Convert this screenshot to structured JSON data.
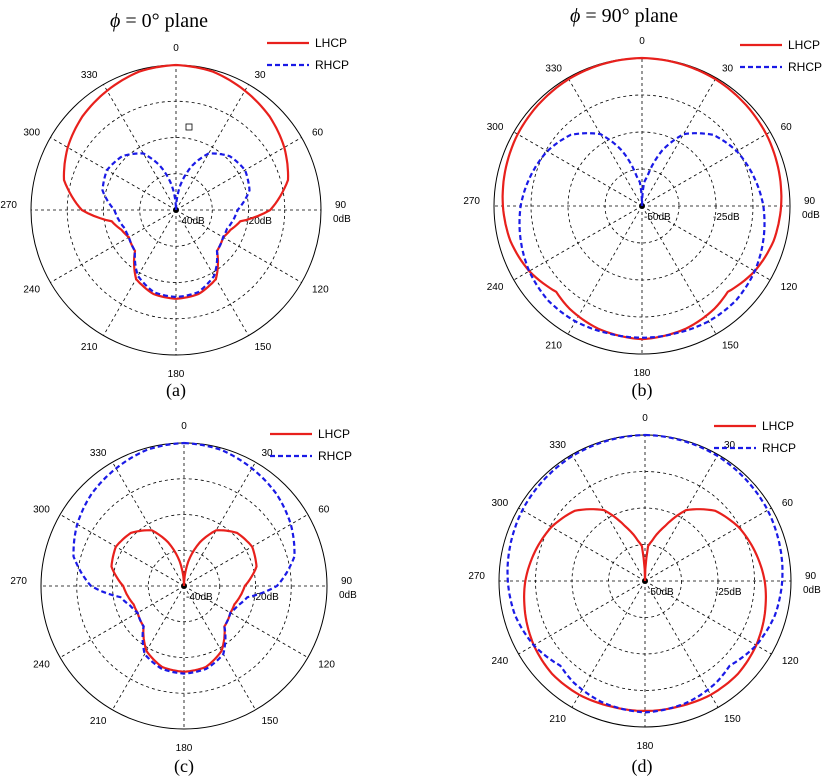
{
  "titles": {
    "a": {
      "symbol": "ϕ",
      "text": " = 0°  plane"
    },
    "b": {
      "symbol": "ϕ",
      "text": " = 90°  plane"
    }
  },
  "colors": {
    "lhcp": "#e8201c",
    "rhcp": "#1a1ae6",
    "grid": "#000000"
  },
  "chart_data": [
    {
      "id": "a",
      "type": "polar",
      "caption": "(a)",
      "angle_labels": [
        "0",
        "30",
        "60",
        "90",
        "120",
        "150",
        "180",
        "210",
        "240",
        "270",
        "300",
        "330"
      ],
      "radial_labels": [
        "-40dB",
        "-20dB",
        "0dB"
      ],
      "radial_range_db": [
        -40,
        0
      ],
      "grid": true,
      "legend_position": "top-right",
      "series": [
        {
          "name": "LHCP",
          "style": "solid",
          "theta_deg": [
            0,
            15,
            30,
            45,
            60,
            75,
            90,
            100,
            110,
            120,
            135,
            150,
            165,
            180,
            195,
            210,
            225,
            240,
            250,
            260,
            270,
            285,
            300,
            315,
            330,
            345,
            360
          ],
          "r_db": [
            0,
            -0.5,
            -2,
            -3.5,
            -5.5,
            -8,
            -14,
            -22,
            -24,
            -25,
            -24,
            -18,
            -16,
            -15.5,
            -16,
            -18,
            -24,
            -25,
            -24,
            -22,
            -14,
            -8,
            -5.5,
            -3.5,
            -2,
            -0.5,
            0
          ]
        },
        {
          "name": "RHCP",
          "style": "dashed",
          "theta_deg": [
            0,
            10,
            20,
            30,
            45,
            60,
            75,
            90,
            100,
            110,
            120,
            135,
            150,
            165,
            180,
            195,
            210,
            225,
            240,
            250,
            260,
            270,
            285,
            300,
            315,
            330,
            340,
            350,
            360
          ],
          "r_db": [
            -40,
            -33,
            -27,
            -22,
            -19,
            -18,
            -19,
            -23,
            -24,
            -25,
            -25,
            -24,
            -19,
            -16.5,
            -16,
            -16.5,
            -19,
            -24,
            -25,
            -25,
            -24,
            -23,
            -19,
            -18,
            -19,
            -22,
            -27,
            -33,
            -40
          ]
        }
      ]
    },
    {
      "id": "b",
      "type": "polar",
      "caption": "(b)",
      "angle_labels": [
        "0",
        "30",
        "60",
        "90",
        "120",
        "150",
        "180",
        "210",
        "240",
        "270",
        "300",
        "330"
      ],
      "radial_labels": [
        "-50dB",
        "-25dB",
        "0dB"
      ],
      "radial_range_db": [
        -50,
        0
      ],
      "grid": true,
      "legend_position": "top-right",
      "series": [
        {
          "name": "LHCP",
          "style": "solid",
          "theta_deg": [
            0,
            30,
            60,
            90,
            105,
            120,
            130,
            135,
            145,
            160,
            180,
            200,
            215,
            225,
            230,
            240,
            255,
            270,
            300,
            330,
            360
          ],
          "r_db": [
            0,
            -0.5,
            -1.5,
            -3,
            -4,
            -6,
            -8,
            -9,
            -7.5,
            -6,
            -5,
            -6,
            -7.5,
            -9,
            -8,
            -6,
            -4,
            -3,
            -1.5,
            -0.5,
            0
          ]
        },
        {
          "name": "RHCP",
          "style": "dashed",
          "theta_deg": [
            0,
            5,
            10,
            20,
            30,
            45,
            60,
            75,
            90,
            105,
            120,
            135,
            150,
            165,
            180,
            195,
            210,
            225,
            240,
            255,
            270,
            285,
            300,
            315,
            330,
            340,
            350,
            355,
            360
          ],
          "r_db": [
            -50,
            -42,
            -40,
            -30,
            -22,
            -16,
            -13,
            -11,
            -9,
            -7.5,
            -6,
            -5,
            -5,
            -5.5,
            -5.5,
            -5.5,
            -5,
            -5,
            -6,
            -7.5,
            -9,
            -11,
            -13,
            -16,
            -22,
            -30,
            -40,
            -42,
            -50
          ]
        }
      ]
    },
    {
      "id": "c",
      "type": "polar",
      "caption": "(c)",
      "angle_labels": [
        "0",
        "30",
        "60",
        "90",
        "120",
        "150",
        "180",
        "210",
        "240",
        "270",
        "300",
        "330"
      ],
      "radial_labels": [
        "-40dB",
        "-20dB",
        "0dB"
      ],
      "radial_range_db": [
        -40,
        0
      ],
      "grid": true,
      "legend_position": "top-right",
      "series": [
        {
          "name": "LHCP",
          "style": "solid",
          "theta_deg": [
            0,
            10,
            20,
            30,
            45,
            60,
            75,
            90,
            100,
            110,
            120,
            135,
            150,
            165,
            180,
            195,
            210,
            225,
            240,
            250,
            260,
            270,
            285,
            300,
            315,
            330,
            340,
            350,
            360
          ],
          "r_db": [
            -40,
            -33,
            -27,
            -22,
            -19,
            -18,
            -19,
            -23,
            -24,
            -25,
            -25,
            -24,
            -19,
            -16.5,
            -16,
            -16.5,
            -19,
            -24,
            -25,
            -25,
            -24,
            -23,
            -19,
            -18,
            -19,
            -22,
            -27,
            -33,
            -40
          ]
        },
        {
          "name": "RHCP",
          "style": "dashed",
          "theta_deg": [
            0,
            15,
            30,
            45,
            60,
            75,
            90,
            100,
            110,
            120,
            135,
            150,
            165,
            180,
            195,
            210,
            225,
            240,
            250,
            260,
            270,
            285,
            300,
            315,
            330,
            345,
            360
          ],
          "r_db": [
            0,
            -0.5,
            -2,
            -3.5,
            -5.5,
            -8,
            -14,
            -22,
            -24,
            -25,
            -24,
            -18,
            -16,
            -15.5,
            -16,
            -18,
            -24,
            -25,
            -24,
            -22,
            -14,
            -8,
            -5.5,
            -3.5,
            -2,
            -0.5,
            0
          ]
        }
      ]
    },
    {
      "id": "d",
      "type": "polar",
      "caption": "(d)",
      "angle_labels": [
        "0",
        "30",
        "60",
        "90",
        "120",
        "150",
        "180",
        "210",
        "240",
        "270",
        "300",
        "330"
      ],
      "radial_labels": [
        "-50dB",
        "-25dB",
        "0dB"
      ],
      "radial_range_db": [
        -50,
        0
      ],
      "grid": true,
      "legend_position": "top-right",
      "series": [
        {
          "name": "LHCP",
          "style": "solid",
          "theta_deg": [
            0,
            5,
            10,
            20,
            30,
            45,
            60,
            75,
            90,
            105,
            120,
            135,
            150,
            165,
            180,
            195,
            210,
            225,
            240,
            255,
            270,
            285,
            300,
            315,
            330,
            340,
            350,
            355,
            360
          ],
          "r_db": [
            -50,
            -38,
            -36,
            -30,
            -22,
            -16,
            -13,
            -11,
            -9,
            -7.5,
            -6,
            -5,
            -5,
            -5.5,
            -5.5,
            -5.5,
            -5,
            -5,
            -6,
            -7.5,
            -9,
            -11,
            -13,
            -16,
            -22,
            -30,
            -36,
            -38,
            -50
          ]
        },
        {
          "name": "RHCP",
          "style": "dashed",
          "theta_deg": [
            0,
            30,
            60,
            90,
            105,
            120,
            130,
            135,
            145,
            160,
            180,
            200,
            215,
            225,
            230,
            240,
            255,
            270,
            300,
            330,
            360
          ],
          "r_db": [
            0,
            -0.5,
            -1.5,
            -3,
            -4,
            -6,
            -8,
            -9,
            -7.5,
            -6,
            -5,
            -6,
            -7.5,
            -9,
            -8,
            -6,
            -4,
            -3,
            -1.5,
            -0.5,
            0
          ]
        }
      ]
    }
  ]
}
